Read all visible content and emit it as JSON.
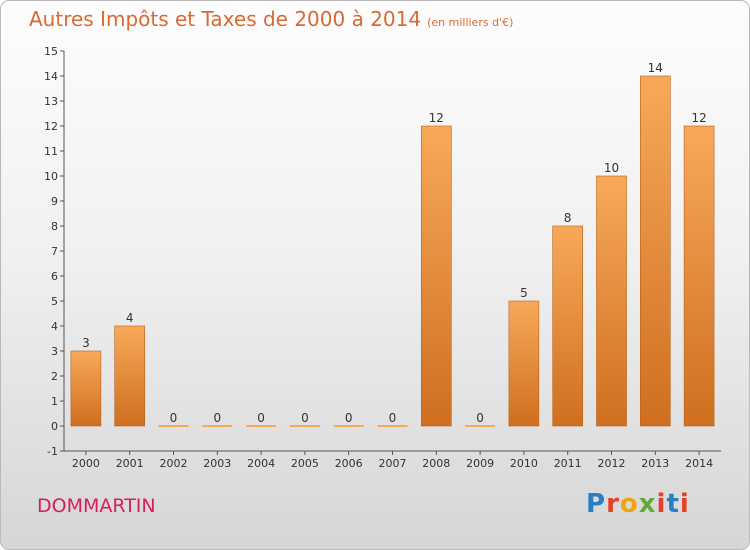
{
  "title": "Autres Impôts et Taxes de 2000 à 2014",
  "title_unit": "(en milliers d'€)",
  "commune": "DOMMARTIN",
  "logo": {
    "letters": [
      "P",
      "r",
      "o",
      "x",
      "i",
      "t",
      "i"
    ],
    "colors": [
      "#2a7fc4",
      "#e4412a",
      "#f2a40f",
      "#64a937",
      "#e4412a",
      "#2a7fc4",
      "#e4412a"
    ]
  },
  "colors": {
    "bar_light": "#f7a95a",
    "bar_dark": "#cf6f1f",
    "title": "#d86a33",
    "commune": "#d61f59"
  },
  "chart_data": {
    "type": "bar",
    "categories": [
      "2000",
      "2001",
      "2002",
      "2003",
      "2004",
      "2005",
      "2006",
      "2007",
      "2008",
      "2009",
      "2010",
      "2011",
      "2012",
      "2013",
      "2014"
    ],
    "values": [
      3,
      4,
      0,
      0,
      0,
      0,
      0,
      0,
      12,
      0,
      5,
      8,
      10,
      14,
      12
    ],
    "data_labels": [
      "3",
      "4",
      "0",
      "0",
      "0",
      "0",
      "0",
      "0",
      "12",
      "0",
      "5",
      "8",
      "10",
      "14",
      "12"
    ],
    "title": "Autres Impôts et Taxes de 2000 à 2014",
    "subtitle": "(en milliers d'€)",
    "xlabel": "",
    "ylabel": "",
    "ylim": [
      -1,
      15
    ],
    "yticks": [
      "-1",
      "0",
      "1",
      "2",
      "3",
      "4",
      "5",
      "6",
      "7",
      "8",
      "9",
      "10",
      "11",
      "12",
      "13",
      "14",
      "15"
    ],
    "grid": false,
    "legend": "none"
  }
}
